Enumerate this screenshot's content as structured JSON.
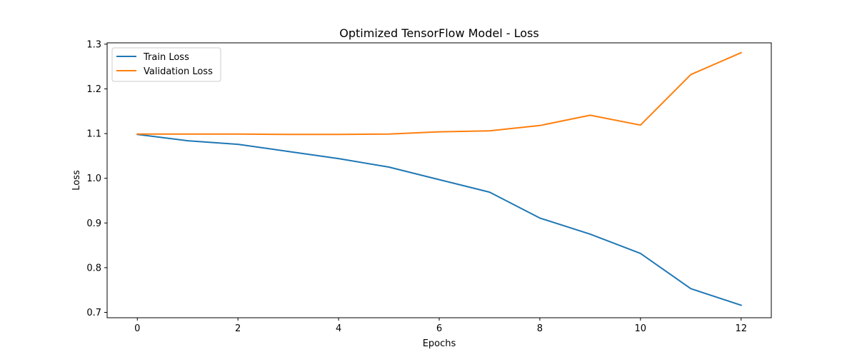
{
  "chart_data": {
    "type": "line",
    "title": "Optimized TensorFlow Model - Loss",
    "xlabel": "Epochs",
    "ylabel": "Loss",
    "xlim": [
      -0.6,
      12.6
    ],
    "ylim": [
      0.688,
      1.303
    ],
    "x_ticks": [
      0,
      2,
      4,
      6,
      8,
      10,
      12
    ],
    "y_ticks": [
      0.7,
      0.8,
      0.9,
      1.0,
      1.1,
      1.2,
      1.3
    ],
    "y_tick_labels": [
      "0.7",
      "0.8",
      "0.9",
      "1.0",
      "1.1",
      "1.2",
      "1.3"
    ],
    "x": [
      0,
      1,
      2,
      3,
      4,
      5,
      6,
      7,
      8,
      9,
      10,
      11,
      12
    ],
    "legend_position": "top-left",
    "grid": false,
    "series": [
      {
        "name": "Train Loss",
        "color": "#1f77b4",
        "values": [
          1.098,
          1.084,
          1.076,
          1.06,
          1.044,
          1.025,
          0.997,
          0.969,
          0.911,
          0.875,
          0.832,
          0.753,
          0.716
        ]
      },
      {
        "name": "Validation Loss",
        "color": "#ff7f0e",
        "values": [
          1.099,
          1.099,
          1.099,
          1.098,
          1.098,
          1.099,
          1.104,
          1.106,
          1.118,
          1.141,
          1.119,
          1.232,
          1.281
        ]
      }
    ]
  }
}
